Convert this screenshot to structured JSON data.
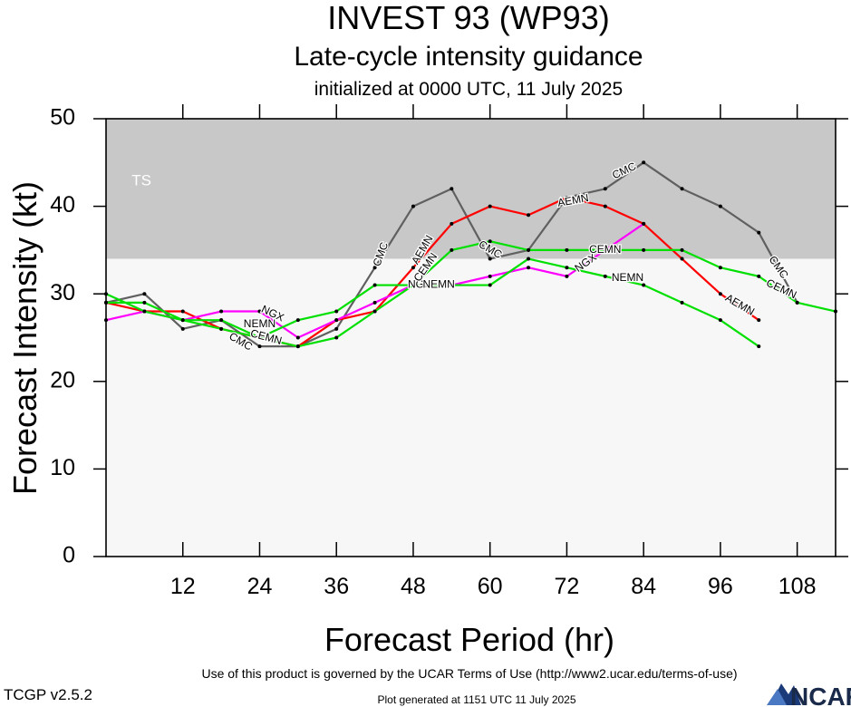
{
  "header": {
    "title": "INVEST 93 (WP93)",
    "subtitle": "Late-cycle intensity guidance",
    "init": "initialized at 0000 UTC, 11 July 2025"
  },
  "footer": {
    "terms": "Use of this product is governed by the UCAR Terms of Use (http://www2.ucar.edu/terms-of-use)",
    "version": "TCGP v2.5.2",
    "generated": "Plot generated at 1151 UTC   11 July 2025",
    "logo_text": "NCAR"
  },
  "chart_data": {
    "type": "line",
    "xlabel": "Forecast Period (hr)",
    "ylabel": "Forecast Intensity (kt)",
    "xlim": [
      0,
      114
    ],
    "ylim": [
      0,
      50
    ],
    "xticks": [
      12,
      24,
      36,
      48,
      60,
      72,
      84,
      96,
      108
    ],
    "yticks": [
      0,
      10,
      20,
      30,
      40,
      50
    ],
    "bands": [
      {
        "label": "TS",
        "from": 34,
        "to": 50,
        "color": "#c8c8c8"
      },
      {
        "label": "",
        "from": 0,
        "to": 34,
        "color": "#f7f7f7"
      }
    ],
    "series": [
      {
        "name": "CMC",
        "color": "#606060",
        "x": [
          0,
          6,
          12,
          18,
          24,
          30,
          36,
          42,
          48,
          54,
          60,
          66,
          72,
          78,
          84,
          90,
          96,
          102,
          108
        ],
        "y": [
          29,
          30,
          26,
          27,
          24,
          24,
          26,
          33,
          40,
          42,
          34,
          35,
          41,
          42,
          45,
          42,
          40,
          37,
          29
        ],
        "labels": [
          {
            "text": "CMC",
            "x": 21,
            "y": 24.5,
            "angle": 30
          },
          {
            "text": "CMC",
            "x": 43,
            "y": 34.5,
            "angle": -70
          },
          {
            "text": "CMC",
            "x": 60,
            "y": 35,
            "angle": 30
          },
          {
            "text": "CMC",
            "x": 81,
            "y": 44,
            "angle": -25
          },
          {
            "text": "CMC",
            "x": 105,
            "y": 33,
            "angle": 55
          }
        ]
      },
      {
        "name": "AEMN",
        "color": "#ff0000",
        "x": [
          0,
          6,
          12,
          18,
          24,
          30,
          36,
          42,
          48,
          54,
          60,
          66,
          72,
          78,
          84,
          90,
          96,
          102
        ],
        "y": [
          29,
          28,
          28,
          26,
          25,
          24,
          27,
          28,
          33,
          38,
          40,
          39,
          41,
          40,
          38,
          34,
          30,
          27
        ],
        "labels": [
          {
            "text": "AEMN",
            "x": 49.5,
            "y": 35,
            "angle": -60
          },
          {
            "text": "AEMN",
            "x": 73,
            "y": 40.6,
            "angle": -10
          },
          {
            "text": "AEMN",
            "x": 99,
            "y": 28.7,
            "angle": 30
          }
        ]
      },
      {
        "name": "NGX",
        "color": "#ff00ff",
        "x": [
          0,
          6,
          12,
          18,
          24,
          30,
          36,
          42,
          48,
          54,
          60,
          66,
          72,
          78,
          84
        ],
        "y": [
          27,
          28,
          27,
          28,
          28,
          25,
          27,
          29,
          31,
          31,
          32,
          33,
          32,
          35,
          38
        ],
        "labels": [
          {
            "text": "NGX",
            "x": 26,
            "y": 27.7,
            "angle": 25
          },
          {
            "text": "NGX",
            "x": 49,
            "y": 31,
            "angle": 0
          },
          {
            "text": "NGX",
            "x": 75,
            "y": 33.5,
            "angle": -35
          }
        ]
      },
      {
        "name": "CEMN",
        "color": "#00e000",
        "x": [
          0,
          6,
          12,
          18,
          24,
          30,
          36,
          42,
          48,
          54,
          60,
          66,
          72,
          78,
          84,
          90,
          96,
          102,
          108,
          114
        ],
        "y": [
          30,
          28,
          27,
          26,
          25,
          27,
          28,
          31,
          31,
          35,
          36,
          35,
          35,
          35,
          35,
          35,
          33,
          32,
          29,
          28
        ],
        "labels": [
          {
            "text": "CEMN",
            "x": 25,
            "y": 25,
            "angle": 15
          },
          {
            "text": "CEMN",
            "x": 50,
            "y": 33,
            "angle": -55
          },
          {
            "text": "CEMN",
            "x": 78,
            "y": 35,
            "angle": 0
          },
          {
            "text": "CEMN",
            "x": 105.5,
            "y": 30.5,
            "angle": 25
          }
        ]
      },
      {
        "name": "NEMN",
        "color": "#00e000",
        "x": [
          0,
          6,
          12,
          18,
          24,
          30,
          36,
          42,
          48,
          54,
          60,
          66,
          72,
          78,
          84,
          90,
          96,
          102
        ],
        "y": [
          29,
          29,
          27,
          27,
          25,
          24,
          25,
          28,
          31,
          31,
          31,
          34,
          33,
          32,
          31,
          29,
          27,
          24
        ],
        "labels": [
          {
            "text": "NEMN",
            "x": 24,
            "y": 26.5,
            "angle": 0
          },
          {
            "text": "NEMN",
            "x": 52,
            "y": 31,
            "angle": 0
          },
          {
            "text": "NEMN",
            "x": 81.5,
            "y": 31.8,
            "angle": 0
          }
        ]
      }
    ]
  }
}
